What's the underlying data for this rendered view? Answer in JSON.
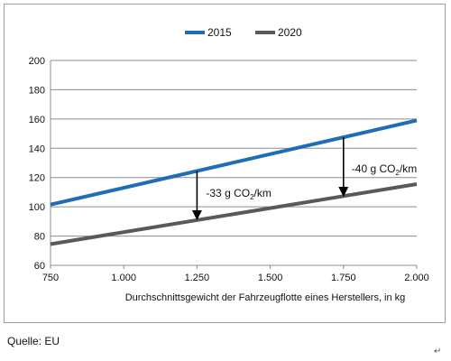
{
  "chart_data": {
    "type": "line",
    "xlabel": "Durchschnittsgewicht der Fahrzeugflotte eines Herstellers, in kg",
    "ylabel": "",
    "xlim": [
      750,
      2000
    ],
    "ylim": [
      60,
      200
    ],
    "x_ticks": [
      750,
      1000,
      1250,
      1500,
      1750,
      2000
    ],
    "x_tick_labels": [
      "750",
      "1.000",
      "1.250",
      "1.500",
      "1.750",
      "2.000"
    ],
    "y_ticks": [
      60,
      80,
      100,
      120,
      140,
      160,
      180,
      200
    ],
    "y_tick_labels": [
      "60",
      "80",
      "100",
      "120",
      "140",
      "160",
      "180",
      "200"
    ],
    "grid": "horizontal",
    "legend_position": "top-center",
    "series": [
      {
        "name": "2015",
        "color": "#1f6db5",
        "x": [
          750,
          2000
        ],
        "y": [
          101.5,
          159
        ]
      },
      {
        "name": "2020",
        "color": "#595959",
        "x": [
          750,
          2000
        ],
        "y": [
          74.5,
          115.5
        ]
      }
    ],
    "annotations": [
      {
        "base": "-33 g CO",
        "sub": "2",
        "tail": "/km",
        "x": 1250,
        "from_y": 124.5,
        "to_y": 91.5
      },
      {
        "base": "-40 g CO",
        "sub": "2",
        "tail": "/km",
        "x": 1750,
        "from_y": 147.5,
        "to_y": 107.5
      }
    ]
  },
  "footer": {
    "source": "Quelle: EU",
    "mark": "↵"
  }
}
